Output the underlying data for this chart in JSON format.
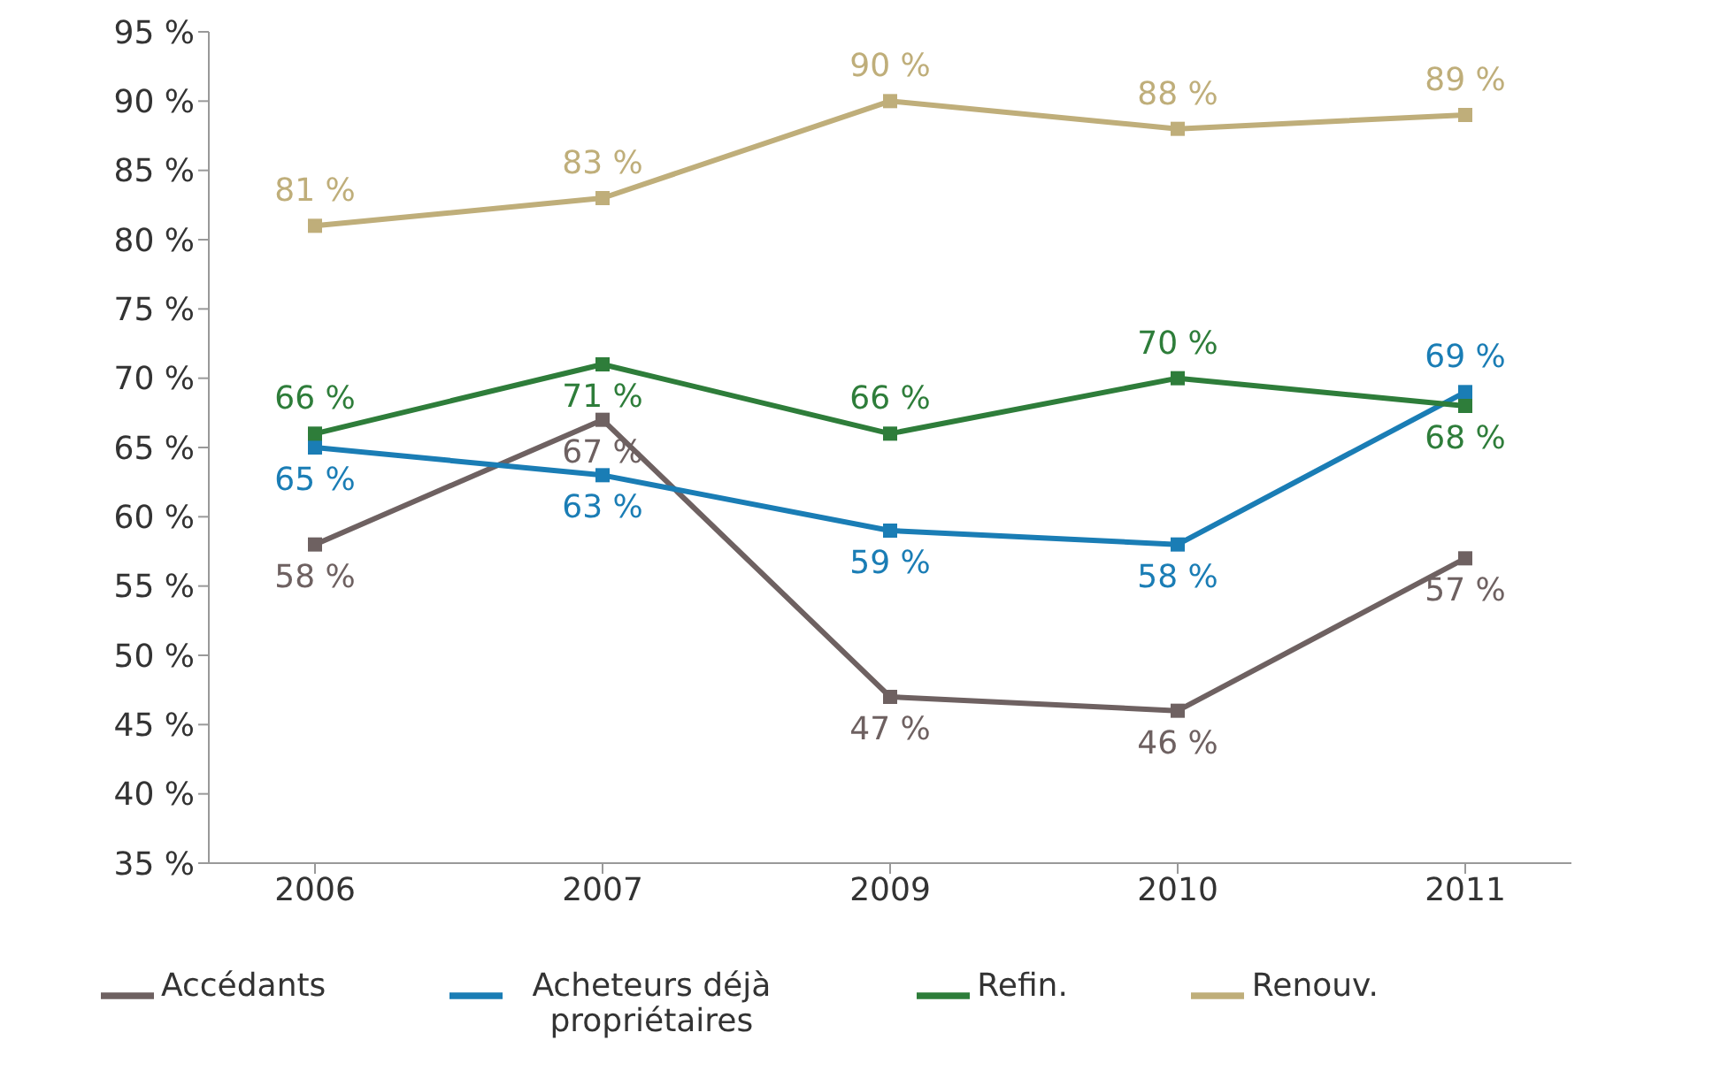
{
  "chart_data": {
    "type": "line",
    "categories": [
      "2006",
      "2007",
      "2009",
      "2010",
      "2011"
    ],
    "ylim": [
      35,
      95
    ],
    "yticks": [
      {
        "value": 35,
        "label": "35 %"
      },
      {
        "value": 40,
        "label": "40 %"
      },
      {
        "value": 45,
        "label": "45 %"
      },
      {
        "value": 50,
        "label": "50 %"
      },
      {
        "value": 55,
        "label": "55 %"
      },
      {
        "value": 60,
        "label": "60 %"
      },
      {
        "value": 65,
        "label": "65 %"
      },
      {
        "value": 70,
        "label": "70 %"
      },
      {
        "value": 75,
        "label": "75 %"
      },
      {
        "value": 80,
        "label": "80 %"
      },
      {
        "value": 85,
        "label": "85 %"
      },
      {
        "value": 90,
        "label": "90 %"
      },
      {
        "value": 95,
        "label": "95 %"
      }
    ],
    "series": [
      {
        "name": "Accédants",
        "color": "#6e6161",
        "values": [
          58,
          67,
          47,
          46,
          57
        ],
        "value_labels": [
          "58 %",
          "67 %",
          "47 %",
          "46 %",
          "57 %"
        ]
      },
      {
        "name": "Acheteurs déjà propriétaires",
        "color": "#1a7db5",
        "values": [
          65,
          63,
          59,
          58,
          69
        ],
        "value_labels": [
          "65 %",
          "63 %",
          "59 %",
          "58 %",
          "69 %"
        ]
      },
      {
        "name": "Refin.",
        "color": "#2e7d3a",
        "values": [
          66,
          71,
          66,
          70,
          68
        ],
        "value_labels": [
          "66 %",
          "71 %",
          "66 %",
          "70 %",
          "68 %"
        ]
      },
      {
        "name": "Renouv.",
        "color": "#bfae7a",
        "values": [
          81,
          83,
          90,
          88,
          89
        ],
        "value_labels": [
          "81 %",
          "83 %",
          "90 %",
          "88 %",
          "89 %"
        ]
      }
    ],
    "marker": "square",
    "line_style": "solid",
    "legend": "bottom"
  }
}
